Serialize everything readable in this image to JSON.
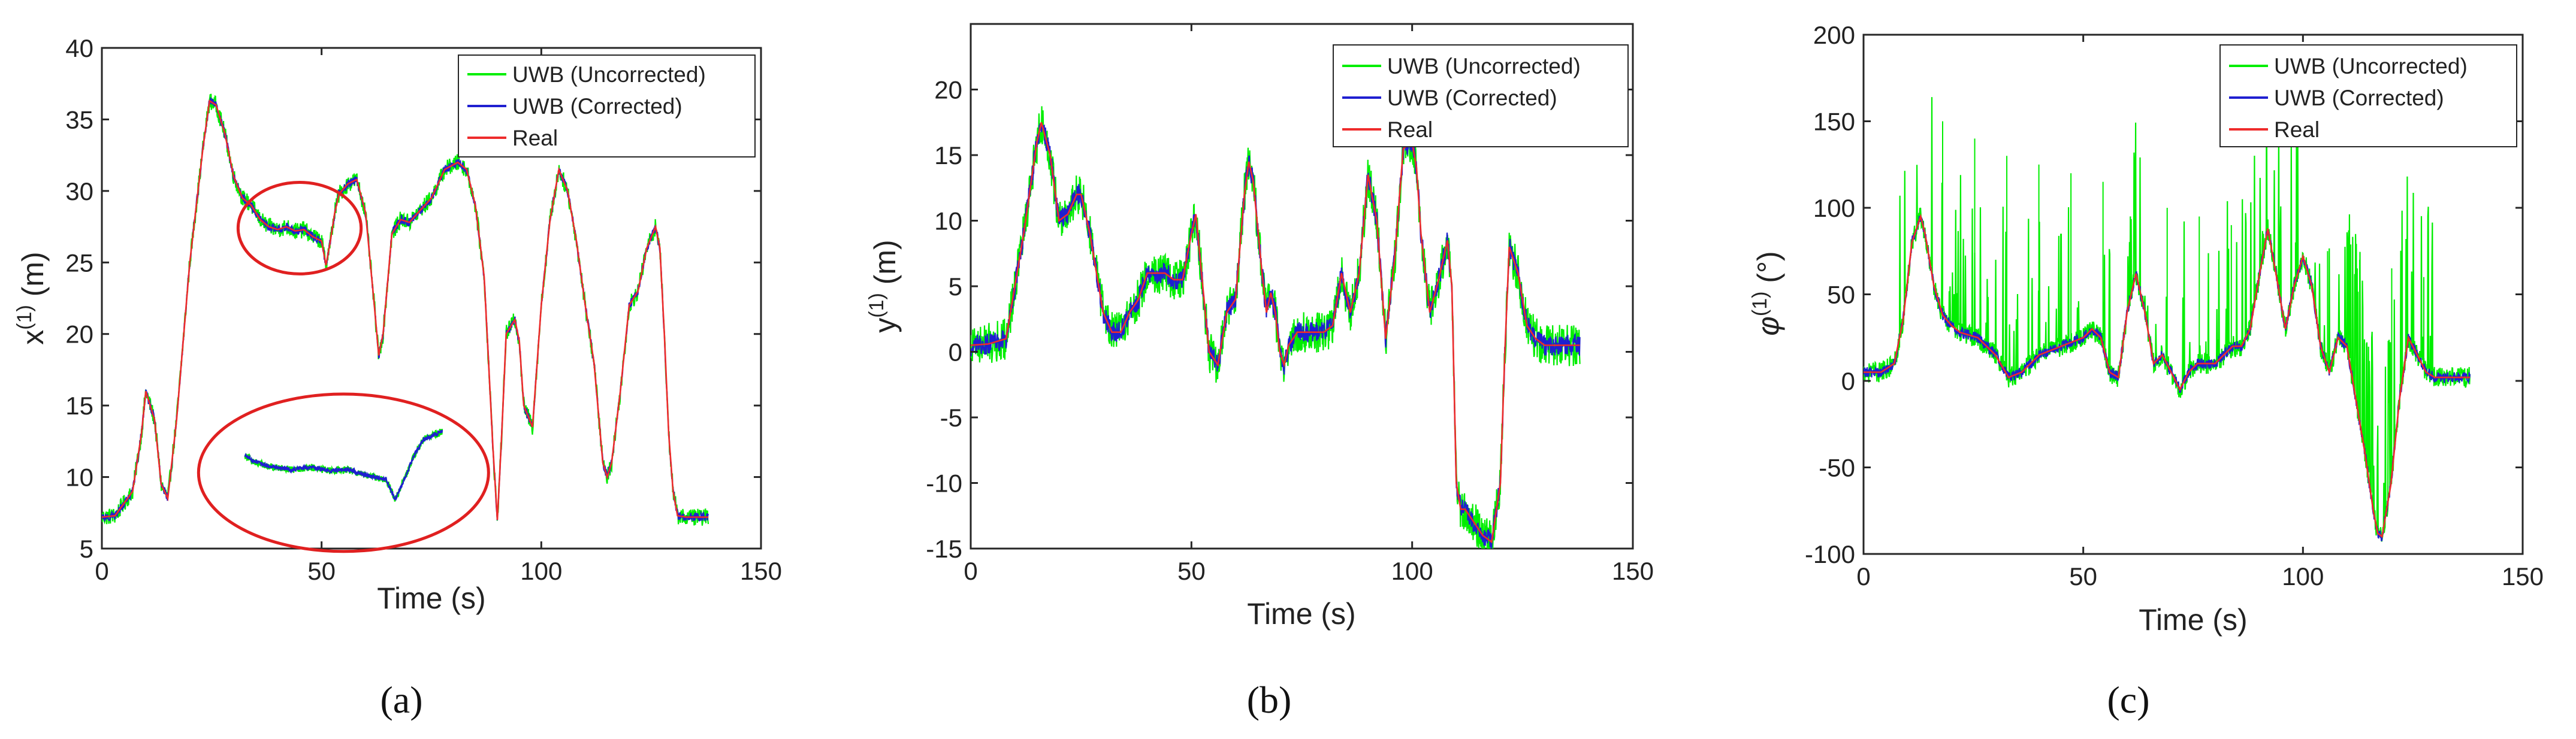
{
  "figure": {
    "panels": [
      {
        "label": "(a)"
      },
      {
        "label": "(b)"
      },
      {
        "label": "(c)"
      }
    ]
  },
  "legend": {
    "uncorrected": "UWB (Uncorrected)",
    "corrected": "UWB (Corrected)",
    "real": "Real"
  },
  "colors": {
    "uncorrected": "#00ee00",
    "corrected": "#1f1fd0",
    "real": "#ee2b2b",
    "annotation": "#e02020",
    "axis": "#262626"
  },
  "chart_data": [
    {
      "type": "line",
      "panel": "(a)",
      "title": "",
      "xlabel": "Time (s)",
      "ylabel": "x",
      "ylabel_sup": "(1)",
      "ylabel_unit": " (m)",
      "xlim": [
        0,
        150
      ],
      "ylim": [
        5,
        40
      ],
      "xticks": [
        0,
        50,
        100,
        150
      ],
      "yticks": [
        5,
        10,
        15,
        20,
        25,
        30,
        35,
        40
      ],
      "grid": false,
      "legend_position": "top-right",
      "noise": {
        "corrected": 0.3,
        "uncorrected": 0.6
      },
      "annotations": [
        {
          "type": "ellipse",
          "note": "highlighted region",
          "x_range": [
            31,
            59
          ],
          "y_range": [
            24.2,
            30.6
          ]
        },
        {
          "type": "ellipse",
          "note": "zoomed inset",
          "x_range": [
            22,
            88
          ],
          "y_range": [
            4.8,
            15.8
          ]
        }
      ],
      "series": [
        {
          "name": "Real",
          "x": [
            0,
            3,
            7,
            9,
            10,
            12,
            13.5,
            15,
            17,
            20,
            23,
            24.5,
            26,
            28,
            30,
            32,
            34,
            36,
            38,
            40,
            42,
            44,
            46,
            48,
            50,
            51,
            52,
            53,
            54,
            56,
            58,
            60,
            62,
            63,
            64,
            66,
            68,
            70,
            72,
            75,
            78,
            81,
            83,
            85,
            87,
            89,
            90,
            91,
            92,
            94,
            95,
            96,
            98,
            100,
            102,
            104,
            106,
            108,
            110,
            112,
            114,
            115,
            116,
            118,
            120,
            122,
            124,
            126,
            127,
            128,
            129,
            130,
            131,
            133,
            135,
            138
          ],
          "y": [
            7.2,
            7.3,
            9,
            13,
            16,
            14,
            9.5,
            8.5,
            14,
            25,
            33,
            36.3,
            36,
            34,
            31,
            29.5,
            29,
            28,
            27.5,
            27.3,
            27.5,
            27.2,
            27.3,
            26.8,
            26.5,
            24.8,
            26.5,
            28.5,
            29.8,
            30.5,
            30.8,
            28.5,
            22,
            18.5,
            20,
            27,
            28,
            27.8,
            28.5,
            29.5,
            31.5,
            32,
            31.5,
            29,
            24,
            12,
            7,
            13,
            20,
            21,
            19.5,
            15,
            13.5,
            22,
            28,
            31.5,
            30,
            26.5,
            22,
            18,
            11,
            10,
            11,
            16,
            22,
            23,
            26,
            27.5,
            26,
            20,
            13,
            9,
            7.3,
            7.2,
            7.2,
            7.2
          ]
        }
      ]
    },
    {
      "type": "line",
      "panel": "(b)",
      "title": "",
      "xlabel": "Time (s)",
      "ylabel": "y",
      "ylabel_sup": "(1)",
      "ylabel_unit": " (m)",
      "xlim": [
        0,
        150
      ],
      "ylim": [
        -15,
        25
      ],
      "xticks": [
        0,
        50,
        100,
        150
      ],
      "yticks": [
        -15,
        -10,
        -5,
        0,
        5,
        10,
        15,
        20
      ],
      "grid": false,
      "legend_position": "top-right",
      "noise": {
        "corrected": 0.8,
        "uncorrected": 1.6
      },
      "series": [
        {
          "name": "Real",
          "x": [
            0,
            4,
            8,
            12,
            15,
            16,
            18,
            20,
            22,
            24,
            25,
            27,
            28,
            30,
            32,
            34,
            36,
            38,
            40,
            42,
            44,
            46,
            48,
            50,
            51,
            52,
            54,
            56,
            58,
            60,
            62,
            63,
            64,
            66,
            67,
            68,
            69,
            70,
            71,
            72,
            74,
            76,
            78,
            80,
            82,
            84,
            86,
            88,
            90,
            92,
            94,
            96,
            98,
            100,
            101,
            102,
            104,
            106,
            108,
            109,
            110,
            111,
            112,
            114,
            116,
            118,
            120,
            121,
            122,
            124,
            126,
            128,
            130,
            133,
            135,
            138
          ],
          "y": [
            0.5,
            0.6,
            1,
            9,
            16,
            17.5,
            15,
            10,
            10.5,
            12,
            12,
            9,
            7,
            3,
            1.5,
            1.5,
            3,
            4,
            6,
            6,
            6,
            5.5,
            5.5,
            9,
            10.5,
            7,
            0,
            -1,
            3,
            4,
            12,
            14.5,
            13,
            6,
            3,
            4.5,
            3,
            0,
            -1,
            0.5,
            1.5,
            1.5,
            1.5,
            1.5,
            2,
            6,
            3,
            6,
            13.5,
            10,
            1,
            7,
            15.5,
            16,
            14,
            9,
            3,
            5.5,
            8.5,
            5,
            -10,
            -12,
            -12,
            -13,
            -14,
            -14.5,
            -10,
            0,
            8,
            6,
            2,
            1,
            0.5,
            0.5,
            0.5,
            0.5
          ]
        }
      ]
    },
    {
      "type": "line",
      "panel": "(c)",
      "title": "",
      "xlabel": "Time (s)",
      "ylabel": "φ",
      "ylabel_sup": "(1)",
      "ylabel_unit": " (°)",
      "xlim": [
        0,
        150
      ],
      "ylim": [
        -100,
        200
      ],
      "xticks": [
        0,
        50,
        100,
        150
      ],
      "yticks": [
        -100,
        -50,
        0,
        50,
        100,
        150,
        200
      ],
      "grid": false,
      "legend_position": "top-right",
      "noise": {
        "corrected": 3,
        "uncorrected": 6
      },
      "spike_peaks": [
        150,
        140,
        130,
        125,
        120,
        115,
        110,
        100,
        95,
        90,
        85,
        80,
        75,
        70,
        65,
        60
      ],
      "series": [
        {
          "name": "Real",
          "x": [
            0,
            4,
            7,
            9,
            11,
            13,
            14,
            16,
            18,
            20,
            22,
            26,
            30,
            33,
            36,
            40,
            45,
            50,
            52,
            54,
            56,
            58,
            60,
            62,
            64,
            66,
            68,
            70,
            72,
            74,
            76,
            78,
            80,
            82,
            84,
            86,
            88,
            90,
            92,
            94,
            96,
            98,
            100,
            102,
            104,
            106,
            108,
            110,
            112,
            114,
            116,
            117,
            118,
            120,
            122,
            124,
            126,
            128,
            130,
            134,
            138
          ],
          "y": [
            5,
            5,
            10,
            35,
            80,
            95,
            85,
            55,
            38,
            32,
            28,
            25,
            15,
            2,
            5,
            15,
            20,
            25,
            30,
            25,
            5,
            2,
            40,
            62,
            40,
            10,
            15,
            5,
            -5,
            5,
            10,
            10,
            10,
            15,
            20,
            20,
            30,
            60,
            88,
            60,
            30,
            55,
            72,
            55,
            20,
            5,
            25,
            20,
            -10,
            -40,
            -75,
            -88,
            -90,
            -60,
            -10,
            25,
            15,
            5,
            2,
            2,
            2
          ]
        }
      ]
    }
  ]
}
